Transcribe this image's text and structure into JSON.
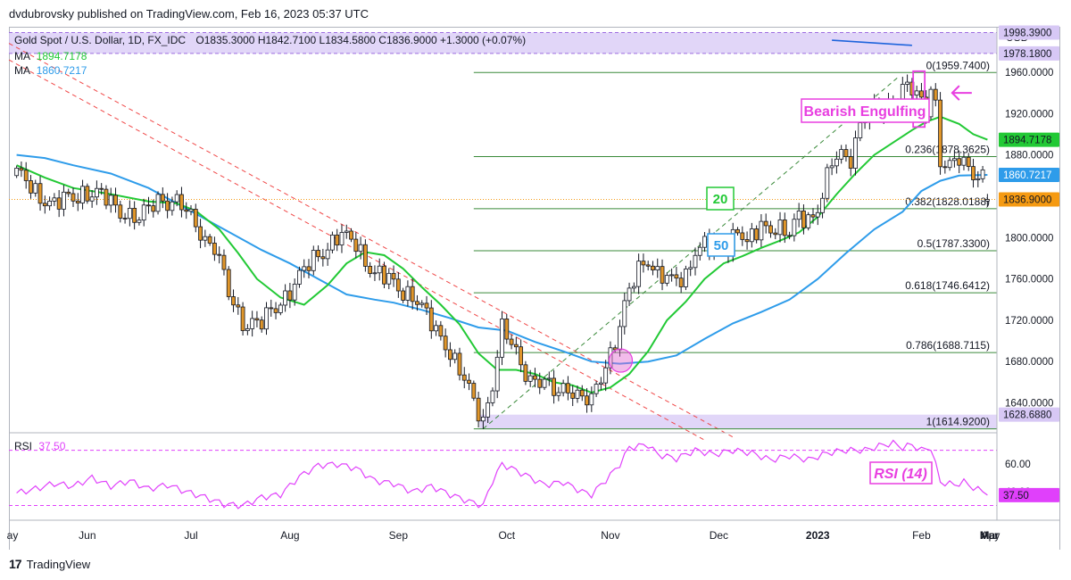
{
  "header": {
    "published": "dvdubrovsky published on TradingView.com, Feb 16, 2023 05:37 UTC"
  },
  "legend": {
    "symbol": "Gold Spot / U.S. Dollar, 1D, FX_IDC",
    "ohlc": "O1835.3000  H1842.7100  L1834.5800  C1836.9000  +1.3000 (+0.07%)",
    "ma1_label": "MA",
    "ma1_value": "1894.7178",
    "ma2_label": "MA",
    "ma2_value": "1860.7217",
    "rsi_label": "RSI",
    "rsi_value": "37.50"
  },
  "colors": {
    "up": "#ffffff",
    "down": "#e0962a",
    "wick": "#131722",
    "ma20": "#22c935",
    "ma50": "#2e9cea",
    "fib": "#3a8a3a",
    "rsi": "#e040fb",
    "zone": "#d7c8f5",
    "trend": "#f04848",
    "last": "#f59a12"
  },
  "axis": {
    "currency": "USD",
    "price_ticks": [
      "1960.0000",
      "1920.0000",
      "1880.0000",
      "1840.0000",
      "1800.0000",
      "1760.0000",
      "1720.0000",
      "1680.0000",
      "1640.0000"
    ],
    "months": [
      "ay",
      "Jun",
      "Jul",
      "Aug",
      "Sep",
      "Oct",
      "Nov",
      "Dec",
      "2023",
      "Feb",
      "Mar",
      "Apr",
      "May"
    ],
    "rsi_ticks": [
      "60.00",
      "40.00"
    ]
  },
  "price_labels": {
    "zone_top": "1998.3900",
    "zone_bottom_top": "1978.1800",
    "ma20": "1894.7178",
    "ma50": "1860.7217",
    "last": "1836.9000",
    "zone_low": "1628.6880",
    "rsi": "37.50"
  },
  "annotations": {
    "bearish_engulfing": "Bearish Engulfing",
    "ma20_tag": "20",
    "ma50_tag": "50",
    "rsi_tag": "RSI (14)"
  },
  "chart_data": {
    "type": "candlestick",
    "y_range": [
      1612,
      2004
    ],
    "rsi_range": [
      20,
      82
    ],
    "fib_levels": [
      {
        "label": "0(1959.7400)",
        "price": 1959.74
      },
      {
        "label": "0.236(1878.3625)",
        "price": 1878.3625
      },
      {
        "label": "0.382(1828.0188)",
        "price": 1828.0188
      },
      {
        "label": "0.5(1787.3300)",
        "price": 1787.33
      },
      {
        "label": "0.618(1746.6412)",
        "price": 1746.6412
      },
      {
        "label": "0.786(1688.7115)",
        "price": 1688.7115
      },
      {
        "label": "1(1614.9200)",
        "price": 1614.92
      }
    ],
    "resistance_zone": [
      1978.18,
      1998.39
    ],
    "support_zone": [
      1614.92,
      1628.688
    ],
    "price_path": [
      [
        0,
        1860
      ],
      [
        3,
        1850
      ],
      [
        8,
        1830
      ],
      [
        14,
        1845
      ],
      [
        20,
        1835
      ],
      [
        26,
        1815
      ],
      [
        30,
        1840
      ],
      [
        34,
        1832
      ],
      [
        38,
        1815
      ],
      [
        40,
        1800
      ],
      [
        42,
        1790
      ],
      [
        45,
        1745
      ],
      [
        48,
        1720
      ],
      [
        52,
        1715
      ],
      [
        56,
        1740
      ],
      [
        60,
        1760
      ],
      [
        64,
        1785
      ],
      [
        68,
        1800
      ],
      [
        72,
        1795
      ],
      [
        76,
        1765
      ],
      [
        80,
        1755
      ],
      [
        84,
        1745
      ],
      [
        87,
        1722
      ],
      [
        89,
        1710
      ],
      [
        91,
        1700
      ],
      [
        93,
        1680
      ],
      [
        95,
        1660
      ],
      [
        97,
        1640
      ],
      [
        99,
        1625
      ],
      [
        101,
        1660
      ],
      [
        103,
        1710
      ],
      [
        105,
        1695
      ],
      [
        107,
        1680
      ],
      [
        109,
        1665
      ],
      [
        111,
        1660
      ],
      [
        114,
        1650
      ],
      [
        117,
        1658
      ],
      [
        120,
        1642
      ],
      [
        122,
        1640
      ],
      [
        125,
        1680
      ],
      [
        127,
        1700
      ],
      [
        128,
        1715
      ],
      [
        130,
        1745
      ],
      [
        132,
        1770
      ],
      [
        134,
        1782
      ],
      [
        136,
        1765
      ],
      [
        139,
        1755
      ],
      [
        142,
        1765
      ],
      [
        144,
        1790
      ],
      [
        147,
        1790
      ],
      [
        151,
        1795
      ],
      [
        153,
        1810
      ],
      [
        155,
        1790
      ],
      [
        158,
        1812
      ],
      [
        161,
        1812
      ],
      [
        164,
        1800
      ],
      [
        166,
        1820
      ],
      [
        169,
        1822
      ],
      [
        171,
        1840
      ],
      [
        173,
        1870
      ],
      [
        175,
        1880
      ],
      [
        177,
        1880
      ],
      [
        179,
        1910
      ],
      [
        181,
        1922
      ],
      [
        183,
        1920
      ],
      [
        185,
        1930
      ],
      [
        187,
        1940
      ],
      [
        189,
        1945
      ],
      [
        191,
        1935
      ],
      [
        193,
        1925
      ],
      [
        194,
        1950
      ],
      [
        195,
        1930
      ],
      [
        196,
        1875
      ],
      [
        198,
        1865
      ],
      [
        200,
        1875
      ],
      [
        202,
        1870
      ],
      [
        205,
        1858
      ],
      [
        206,
        1837
      ]
    ],
    "ma20_path": [
      [
        0,
        1870
      ],
      [
        6,
        1858
      ],
      [
        12,
        1848
      ],
      [
        20,
        1842
      ],
      [
        28,
        1835
      ],
      [
        34,
        1833
      ],
      [
        38,
        1826
      ],
      [
        43,
        1808
      ],
      [
        47,
        1785
      ],
      [
        51,
        1760
      ],
      [
        56,
        1742
      ],
      [
        61,
        1735
      ],
      [
        66,
        1754
      ],
      [
        70,
        1775
      ],
      [
        74,
        1786
      ],
      [
        78,
        1783
      ],
      [
        82,
        1770
      ],
      [
        86,
        1752
      ],
      [
        90,
        1735
      ],
      [
        94,
        1716
      ],
      [
        98,
        1688
      ],
      [
        102,
        1672
      ],
      [
        106,
        1672
      ],
      [
        110,
        1668
      ],
      [
        114,
        1660
      ],
      [
        118,
        1657
      ],
      [
        122,
        1650
      ],
      [
        126,
        1655
      ],
      [
        130,
        1668
      ],
      [
        134,
        1690
      ],
      [
        138,
        1720
      ],
      [
        142,
        1738
      ],
      [
        146,
        1760
      ],
      [
        150,
        1775
      ],
      [
        154,
        1782
      ],
      [
        158,
        1790
      ],
      [
        162,
        1797
      ],
      [
        166,
        1805
      ],
      [
        170,
        1820
      ],
      [
        174,
        1842
      ],
      [
        178,
        1862
      ],
      [
        182,
        1880
      ],
      [
        186,
        1892
      ],
      [
        190,
        1904
      ],
      [
        193,
        1912
      ],
      [
        196,
        1917
      ],
      [
        200,
        1910
      ],
      [
        203,
        1900
      ],
      [
        206,
        1894.7
      ]
    ],
    "ma50_path": [
      [
        0,
        1880
      ],
      [
        6,
        1877
      ],
      [
        12,
        1870
      ],
      [
        20,
        1862
      ],
      [
        28,
        1848
      ],
      [
        36,
        1828
      ],
      [
        44,
        1808
      ],
      [
        52,
        1788
      ],
      [
        58,
        1775
      ],
      [
        64,
        1760
      ],
      [
        70,
        1745
      ],
      [
        76,
        1740
      ],
      [
        80,
        1737
      ],
      [
        86,
        1730
      ],
      [
        92,
        1722
      ],
      [
        98,
        1713
      ],
      [
        104,
        1710
      ],
      [
        110,
        1699
      ],
      [
        116,
        1690
      ],
      [
        122,
        1680
      ],
      [
        128,
        1678
      ],
      [
        134,
        1680
      ],
      [
        140,
        1686
      ],
      [
        146,
        1702
      ],
      [
        152,
        1717
      ],
      [
        158,
        1728
      ],
      [
        164,
        1740
      ],
      [
        170,
        1760
      ],
      [
        176,
        1785
      ],
      [
        182,
        1808
      ],
      [
        188,
        1825
      ],
      [
        192,
        1845
      ],
      [
        196,
        1855
      ],
      [
        200,
        1860
      ],
      [
        206,
        1860.7
      ]
    ],
    "rsi_path": [
      [
        0,
        39
      ],
      [
        4,
        42
      ],
      [
        8,
        46
      ],
      [
        12,
        44
      ],
      [
        16,
        50
      ],
      [
        20,
        44
      ],
      [
        24,
        48
      ],
      [
        28,
        42
      ],
      [
        32,
        45
      ],
      [
        36,
        40
      ],
      [
        40,
        36
      ],
      [
        44,
        31
      ],
      [
        48,
        30
      ],
      [
        52,
        36
      ],
      [
        56,
        38
      ],
      [
        60,
        51
      ],
      [
        64,
        59
      ],
      [
        68,
        60
      ],
      [
        72,
        57
      ],
      [
        76,
        48
      ],
      [
        80,
        46
      ],
      [
        84,
        40
      ],
      [
        88,
        44
      ],
      [
        92,
        38
      ],
      [
        96,
        33
      ],
      [
        99,
        30
      ],
      [
        101,
        48
      ],
      [
        103,
        60
      ],
      [
        105,
        57
      ],
      [
        108,
        52
      ],
      [
        112,
        45
      ],
      [
        116,
        47
      ],
      [
        120,
        40
      ],
      [
        122,
        38
      ],
      [
        126,
        52
      ],
      [
        128,
        60
      ],
      [
        130,
        72
      ],
      [
        132,
        73
      ],
      [
        134,
        74
      ],
      [
        136,
        67
      ],
      [
        140,
        64
      ],
      [
        144,
        70
      ],
      [
        148,
        67
      ],
      [
        152,
        70
      ],
      [
        156,
        68
      ],
      [
        160,
        63
      ],
      [
        164,
        66
      ],
      [
        168,
        63
      ],
      [
        172,
        68
      ],
      [
        176,
        70
      ],
      [
        180,
        70
      ],
      [
        184,
        74
      ],
      [
        186,
        75
      ],
      [
        188,
        72
      ],
      [
        190,
        74
      ],
      [
        192,
        70
      ],
      [
        194,
        72
      ],
      [
        196,
        47
      ],
      [
        199,
        45
      ],
      [
        201,
        47
      ],
      [
        203,
        43
      ],
      [
        205,
        40
      ],
      [
        206,
        37.5
      ]
    ]
  }
}
